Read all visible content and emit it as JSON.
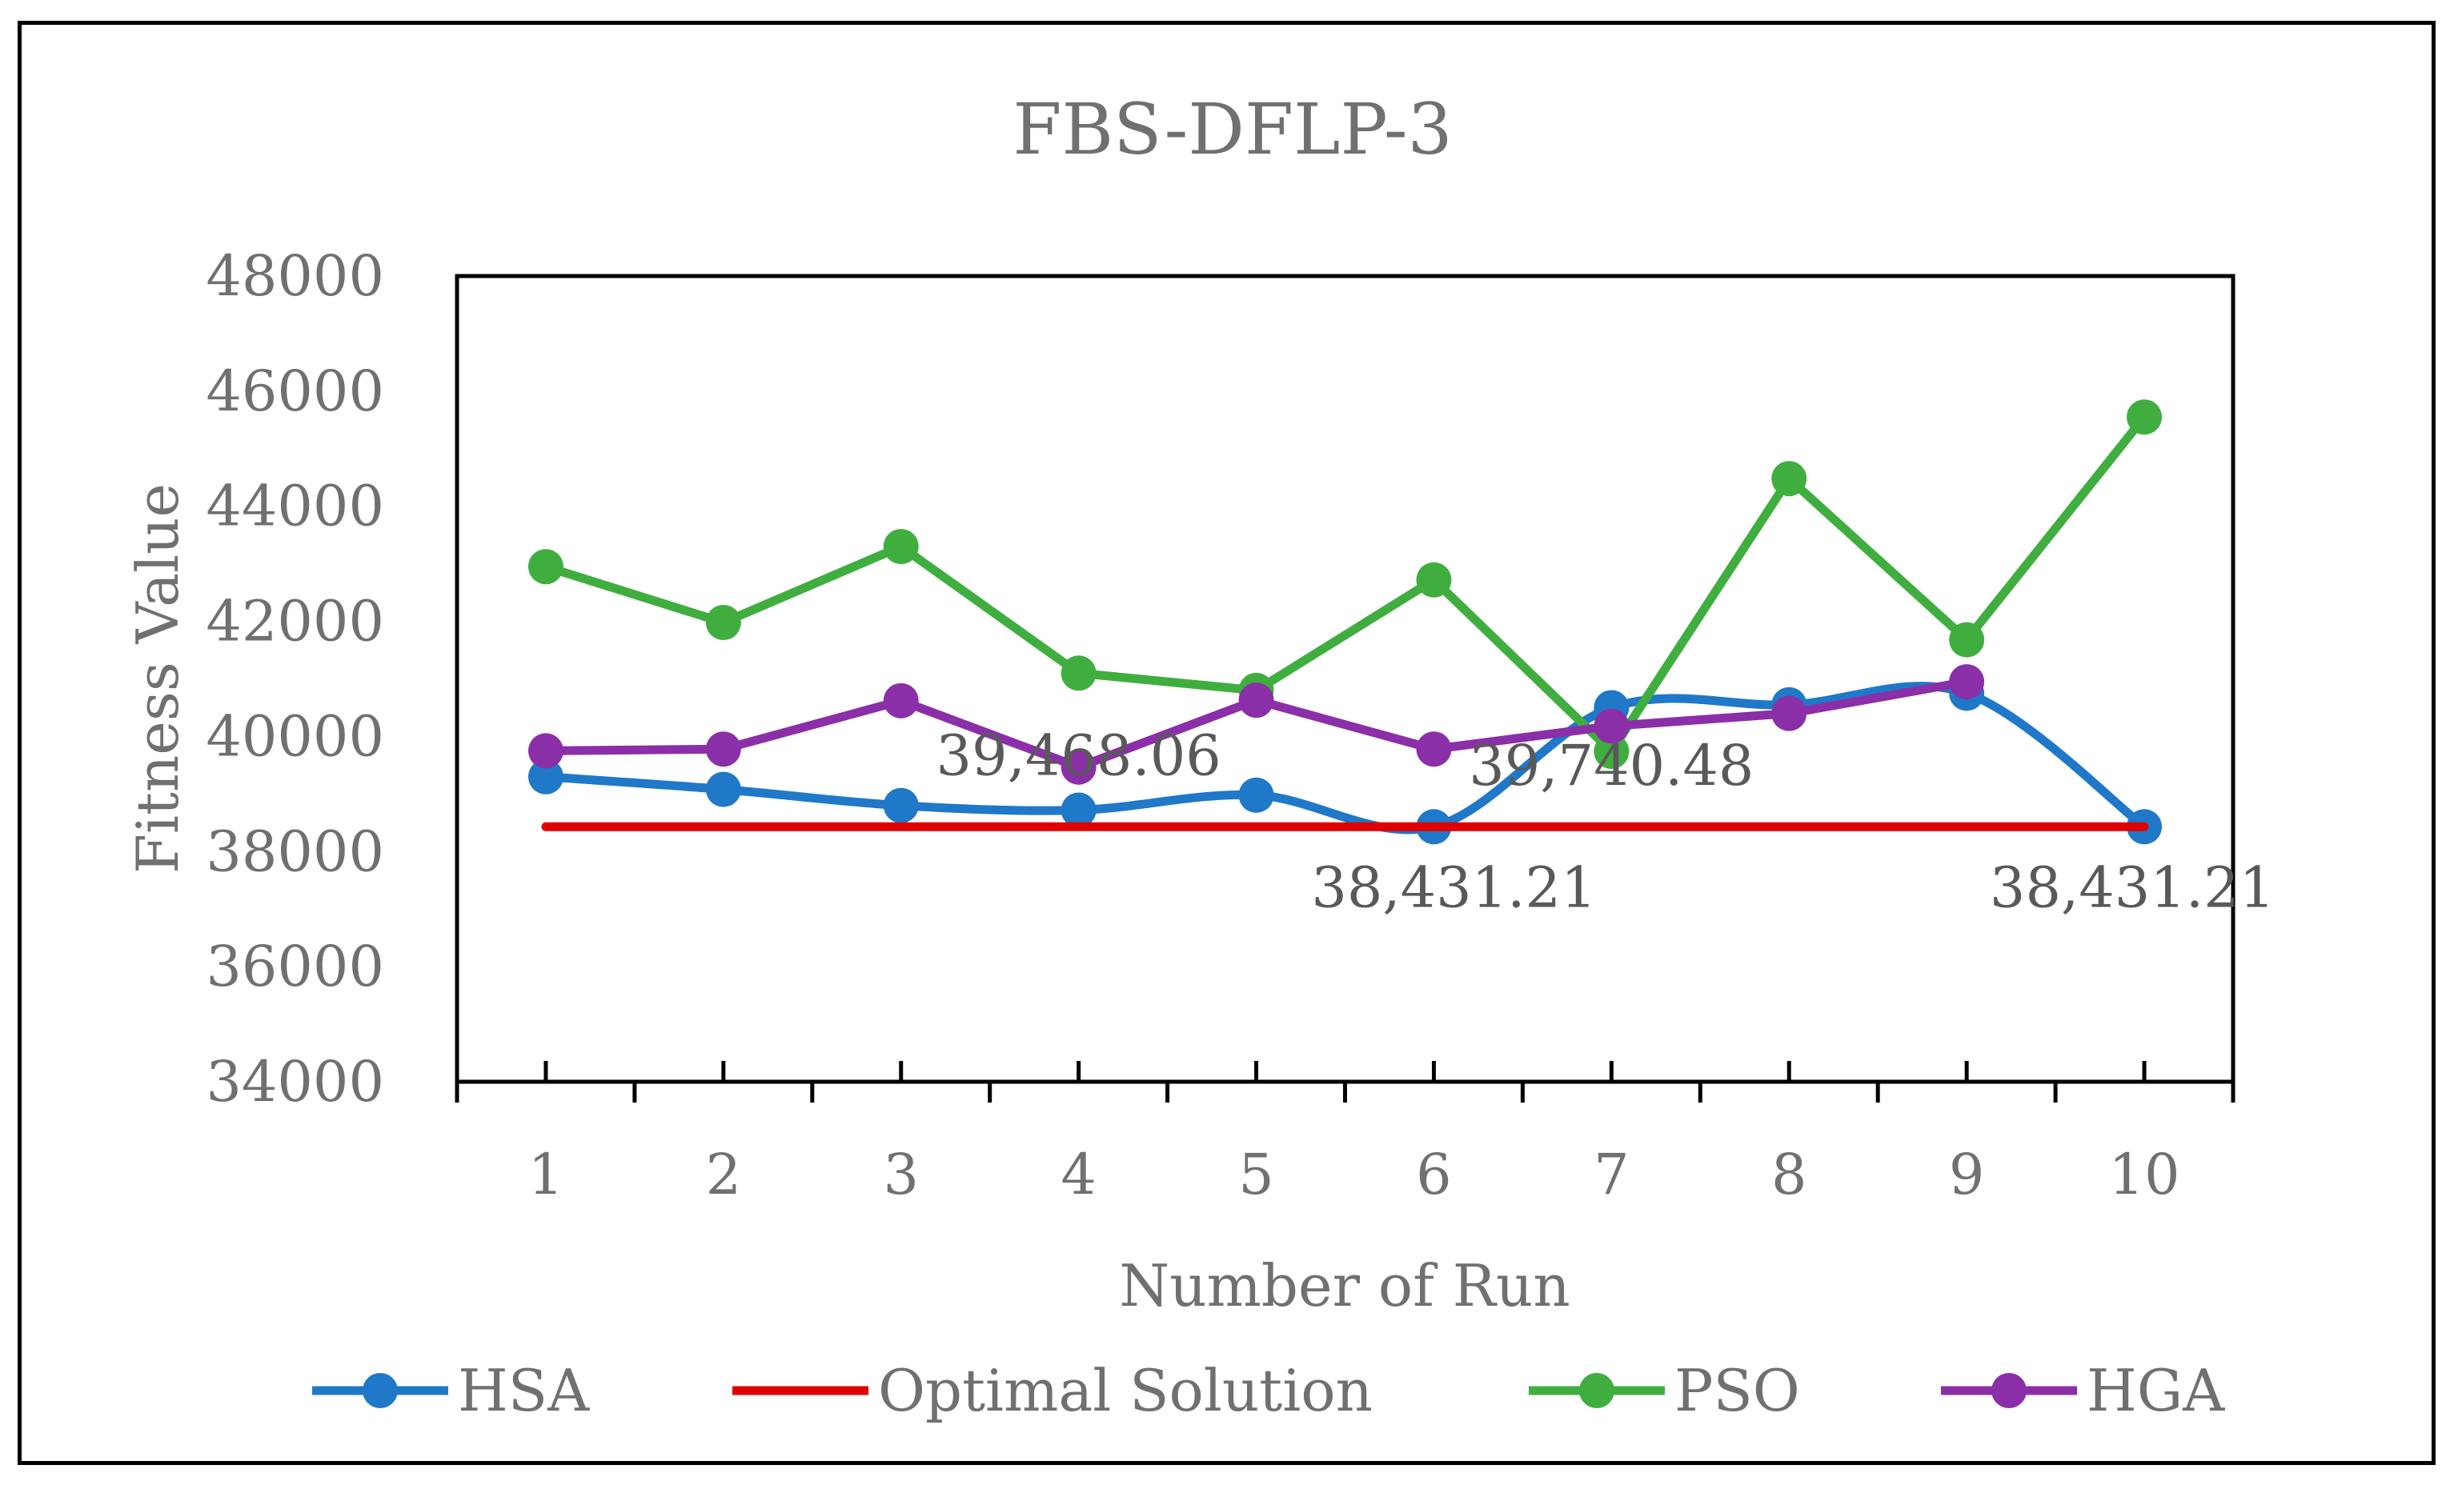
{
  "chart_data": {
    "type": "line",
    "title": "FBS-DFLP-3",
    "xlabel": "Number of Run",
    "ylabel": "Fitness Value",
    "categories": [
      "1",
      "2",
      "3",
      "4",
      "5",
      "6",
      "7",
      "8",
      "9",
      "10"
    ],
    "ylim": [
      34000,
      48000
    ],
    "yticks": [
      "34000",
      "36000",
      "38000",
      "40000",
      "42000",
      "44000",
      "46000",
      "48000"
    ],
    "legend_position": "bottom",
    "series": [
      {
        "name": "HSA",
        "color": "#1F78C8",
        "smooth": true,
        "markers": true,
        "values": [
          39300,
          39080,
          38800,
          38720,
          38980,
          38431.21,
          40500,
          40550,
          40750,
          38431.21
        ]
      },
      {
        "name": "Optimal Solution",
        "color": "#E00000",
        "smooth": false,
        "markers": false,
        "values": [
          38431.21,
          38431.21,
          38431.21,
          38431.21,
          38431.21,
          38431.21,
          38431.21,
          38431.21,
          38431.21,
          38431.21
        ]
      },
      {
        "name": "PSO",
        "color": "#3FAE3F",
        "smooth": false,
        "markers": true,
        "values": [
          42950,
          41980,
          43300,
          41100,
          40800,
          42720,
          39740.48,
          44480,
          41680,
          45550
        ]
      },
      {
        "name": "HGA",
        "color": "#8B2FA8",
        "smooth": false,
        "markers": true,
        "values": [
          39750,
          39780,
          40620,
          39468.06,
          40630,
          39780,
          40180,
          40400,
          40950,
          null
        ]
      }
    ],
    "annotations": [
      {
        "text": "39,468.06",
        "x_index": 3,
        "series": "HGA"
      },
      {
        "text": "39,740.48",
        "x_index": 6,
        "series": "PSO"
      },
      {
        "text": "38,431.21",
        "x_index": 5,
        "series": "HSA"
      },
      {
        "text": "38,431.21",
        "x_index": 9,
        "series": "HSA"
      }
    ]
  }
}
